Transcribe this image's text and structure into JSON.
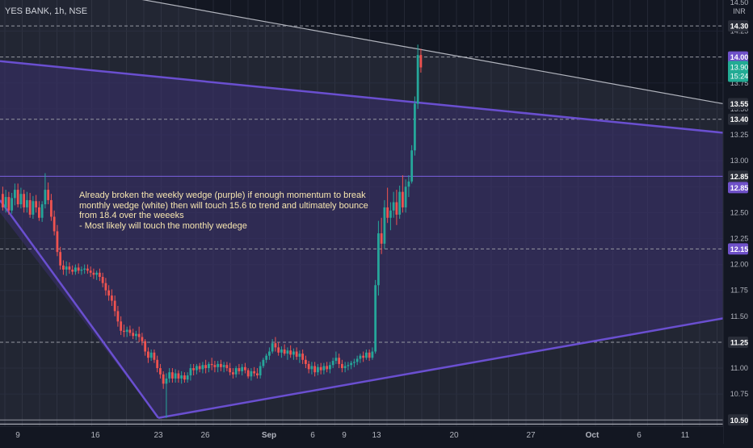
{
  "header": {
    "ticker": "YES BANK, 1h, NSE",
    "currency": "INR",
    "top_clipped": "14.50"
  },
  "annotation": "Already broken the weekly wedge (purple) if enough momentum to break monthly wedge (white) then will touch 15.6 to trend and ultimately bounce from 18.4 over the weeeks\n- Most likely will touch the monthly wedege",
  "colors": {
    "background": "#131722",
    "up": "#26a69a",
    "down": "#ef5350",
    "purple_wedge": "#6a4fd0",
    "white_wedge": "#b2b5be",
    "purple_fill": "#3b2f6e",
    "white_fill": "#5a5f70",
    "price_badge": "#22ab94"
  },
  "chart_data": {
    "type": "candlestick",
    "title": "YES BANK, 1h, NSE",
    "ylim": [
      10.44,
      14.55
    ],
    "y_ticks": [
      "10.75",
      "11.00",
      "11.25",
      "11.50",
      "11.75",
      "12.00",
      "12.25",
      "12.50",
      "12.75",
      "13.00",
      "13.25",
      "13.50",
      "13.75",
      "14.00",
      "14.25"
    ],
    "x_tick_labels": [
      "9",
      "16",
      "23",
      "26",
      "Sep",
      "6",
      "9",
      "13",
      "20",
      "27",
      "Oct",
      "6",
      "11"
    ],
    "horizontal_levels": [
      {
        "value": 14.3,
        "style": "dashed",
        "badge": "dark"
      },
      {
        "value": 14.0,
        "style": "dashed",
        "badge": "purple"
      },
      {
        "value": 13.55,
        "style": "none",
        "badge": "dark"
      },
      {
        "value": 13.4,
        "style": "dashed",
        "badge": "dark"
      },
      {
        "value": 12.85,
        "style": "solid",
        "badge": "dark"
      },
      {
        "value": 12.85,
        "style": "none",
        "badge": "purple"
      },
      {
        "value": 12.15,
        "style": "dashed",
        "badge": "purple"
      },
      {
        "value": 11.25,
        "style": "dashed",
        "badge": "dark"
      },
      {
        "value": 10.5,
        "style": "solid",
        "badge": "dark"
      }
    ],
    "last_price": {
      "value": "13.90",
      "countdown": "15:24"
    },
    "trendlines": [
      {
        "name": "monthly wedge upper",
        "color": "white",
        "from_price": 14.8,
        "to_price": 13.55
      },
      {
        "name": "monthly wedge lower",
        "color": "white",
        "from_price": 10.46,
        "to_price": 10.46
      },
      {
        "name": "weekly wedge upper",
        "color": "purple",
        "from_price": 13.96,
        "to_price": 13.27
      },
      {
        "name": "weekly wedge lower",
        "color": "purple",
        "from_price": 10.52,
        "to_price": 11.48
      }
    ],
    "candles": [
      [
        12.68,
        12.75,
        12.52,
        12.55
      ],
      [
        12.55,
        12.72,
        12.5,
        12.65
      ],
      [
        12.65,
        12.7,
        12.48,
        12.52
      ],
      [
        12.52,
        12.69,
        12.49,
        12.64
      ],
      [
        12.64,
        12.78,
        12.57,
        12.72
      ],
      [
        12.72,
        12.78,
        12.55,
        12.58
      ],
      [
        12.58,
        12.74,
        12.54,
        12.68
      ],
      [
        12.68,
        12.72,
        12.5,
        12.55
      ],
      [
        12.55,
        12.7,
        12.5,
        12.62
      ],
      [
        12.62,
        12.69,
        12.45,
        12.48
      ],
      [
        12.48,
        12.66,
        12.44,
        12.61
      ],
      [
        12.61,
        12.67,
        12.5,
        12.55
      ],
      [
        12.55,
        12.61,
        12.42,
        12.45
      ],
      [
        12.45,
        12.61,
        12.41,
        12.58
      ],
      [
        12.58,
        12.88,
        12.54,
        12.72
      ],
      [
        12.72,
        12.79,
        12.58,
        12.62
      ],
      [
        12.62,
        12.68,
        12.42,
        12.46
      ],
      [
        12.46,
        12.52,
        12.28,
        12.32
      ],
      [
        12.32,
        12.38,
        12.08,
        12.12
      ],
      [
        12.12,
        12.17,
        11.95,
        11.99
      ],
      [
        11.99,
        12.04,
        11.9,
        11.95
      ],
      [
        11.95,
        12.03,
        11.89,
        11.98
      ],
      [
        11.98,
        12.02,
        11.91,
        11.95
      ],
      [
        11.95,
        11.99,
        11.9,
        11.93
      ],
      [
        11.93,
        12.0,
        11.9,
        11.97
      ],
      [
        11.97,
        12.01,
        11.91,
        11.94
      ],
      [
        11.94,
        11.98,
        11.9,
        11.95
      ],
      [
        11.95,
        12.0,
        11.91,
        11.96
      ],
      [
        11.96,
        12.0,
        11.91,
        11.94
      ],
      [
        11.94,
        11.98,
        11.88,
        11.92
      ],
      [
        11.92,
        11.96,
        11.86,
        11.9
      ],
      [
        11.9,
        11.94,
        11.85,
        11.92
      ],
      [
        11.92,
        11.96,
        11.84,
        11.88
      ],
      [
        11.88,
        11.92,
        11.78,
        11.82
      ],
      [
        11.82,
        11.87,
        11.7,
        11.75
      ],
      [
        11.75,
        11.8,
        11.65,
        11.7
      ],
      [
        11.7,
        11.76,
        11.6,
        11.65
      ],
      [
        11.65,
        11.7,
        11.5,
        11.55
      ],
      [
        11.55,
        11.6,
        11.4,
        11.45
      ],
      [
        11.45,
        11.5,
        11.32,
        11.36
      ],
      [
        11.36,
        11.42,
        11.3,
        11.35
      ],
      [
        11.35,
        11.4,
        11.3,
        11.37
      ],
      [
        11.37,
        11.41,
        11.31,
        11.34
      ],
      [
        11.34,
        11.38,
        11.28,
        11.31
      ],
      [
        11.31,
        11.36,
        11.27,
        11.33
      ],
      [
        11.33,
        11.4,
        11.25,
        11.3
      ],
      [
        11.3,
        11.34,
        11.22,
        11.26
      ],
      [
        11.26,
        11.28,
        11.12,
        11.16
      ],
      [
        11.16,
        11.2,
        11.05,
        11.1
      ],
      [
        11.1,
        11.18,
        11.07,
        11.15
      ],
      [
        11.15,
        11.18,
        11.05,
        11.08
      ],
      [
        11.08,
        11.12,
        10.96,
        11.0
      ],
      [
        11.0,
        11.04,
        10.9,
        10.94
      ],
      [
        10.94,
        10.97,
        10.8,
        10.85
      ],
      [
        10.85,
        10.95,
        10.52,
        10.9
      ],
      [
        10.9,
        11.0,
        10.86,
        10.96
      ],
      [
        10.96,
        11.0,
        10.86,
        10.9
      ],
      [
        10.9,
        10.99,
        10.86,
        10.95
      ],
      [
        10.95,
        10.98,
        10.86,
        10.9
      ],
      [
        10.9,
        10.97,
        10.85,
        10.93
      ],
      [
        10.93,
        10.96,
        10.86,
        10.89
      ],
      [
        10.89,
        10.96,
        10.86,
        10.93
      ],
      [
        10.93,
        11.04,
        10.88,
        11.0
      ],
      [
        11.0,
        11.04,
        10.93,
        10.98
      ],
      [
        10.98,
        11.04,
        10.94,
        11.02
      ],
      [
        11.02,
        11.05,
        10.96,
        10.99
      ],
      [
        10.99,
        11.06,
        10.95,
        11.03
      ],
      [
        11.03,
        11.08,
        10.95,
        11.0
      ],
      [
        11.0,
        11.06,
        10.96,
        11.04
      ],
      [
        11.04,
        11.1,
        10.98,
        11.03
      ],
      [
        11.03,
        11.07,
        10.96,
        11.01
      ],
      [
        11.01,
        11.07,
        10.96,
        11.04
      ],
      [
        11.04,
        11.08,
        10.97,
        11.01
      ],
      [
        11.01,
        11.06,
        10.96,
        11.03
      ],
      [
        11.03,
        11.06,
        10.97,
        11.0
      ],
      [
        11.0,
        11.05,
        10.93,
        10.96
      ],
      [
        10.96,
        11.0,
        10.9,
        10.94
      ],
      [
        10.94,
        11.02,
        10.91,
        11.0
      ],
      [
        11.0,
        11.04,
        10.94,
        10.97
      ],
      [
        10.97,
        11.04,
        10.93,
        11.01
      ],
      [
        11.01,
        11.05,
        10.95,
        10.98
      ],
      [
        10.98,
        11.0,
        10.9,
        10.92
      ],
      [
        10.92,
        11.0,
        10.88,
        10.97
      ],
      [
        10.97,
        11.01,
        10.92,
        10.95
      ],
      [
        10.95,
        11.0,
        10.9,
        10.93
      ],
      [
        10.93,
        11.06,
        10.9,
        11.02
      ],
      [
        11.02,
        11.1,
        11.0,
        11.08
      ],
      [
        11.08,
        11.14,
        11.05,
        11.12
      ],
      [
        11.12,
        11.2,
        11.08,
        11.16
      ],
      [
        11.16,
        11.28,
        11.14,
        11.24
      ],
      [
        11.24,
        11.3,
        11.16,
        11.2
      ],
      [
        11.2,
        11.25,
        11.12,
        11.15
      ],
      [
        11.15,
        11.21,
        11.1,
        11.18
      ],
      [
        11.18,
        11.23,
        11.12,
        11.14
      ],
      [
        11.14,
        11.2,
        11.08,
        11.17
      ],
      [
        11.17,
        11.22,
        11.1,
        11.13
      ],
      [
        11.13,
        11.19,
        11.08,
        11.16
      ],
      [
        11.16,
        11.2,
        11.08,
        11.11
      ],
      [
        11.11,
        11.17,
        11.05,
        11.14
      ],
      [
        11.14,
        11.18,
        11.04,
        11.08
      ],
      [
        11.08,
        11.12,
        11.0,
        11.04
      ],
      [
        11.04,
        11.07,
        10.95,
        10.99
      ],
      [
        10.99,
        11.06,
        10.94,
        11.02
      ],
      [
        11.02,
        11.06,
        10.92,
        10.96
      ],
      [
        10.96,
        11.04,
        10.93,
        11.01
      ],
      [
        11.01,
        11.05,
        10.94,
        10.98
      ],
      [
        10.98,
        11.05,
        10.94,
        11.02
      ],
      [
        11.02,
        11.06,
        10.96,
        10.99
      ],
      [
        10.99,
        11.06,
        10.95,
        11.03
      ],
      [
        11.03,
        11.1,
        11.0,
        11.07
      ],
      [
        11.07,
        11.16,
        11.04,
        11.1
      ],
      [
        11.1,
        11.14,
        11.0,
        11.04
      ],
      [
        11.04,
        11.08,
        10.96,
        11.0
      ],
      [
        11.0,
        11.06,
        10.96,
        11.02
      ],
      [
        11.02,
        11.06,
        10.98,
        11.03
      ],
      [
        11.03,
        11.07,
        10.99,
        11.05
      ],
      [
        11.05,
        11.09,
        11.01,
        11.06
      ],
      [
        11.06,
        11.12,
        11.03,
        11.09
      ],
      [
        11.09,
        11.14,
        11.05,
        11.12
      ],
      [
        11.12,
        11.16,
        11.06,
        11.1
      ],
      [
        11.1,
        11.18,
        11.08,
        11.15
      ],
      [
        11.15,
        11.18,
        11.07,
        11.1
      ],
      [
        11.1,
        11.2,
        11.08,
        11.16
      ],
      [
        11.16,
        11.85,
        11.14,
        11.8
      ],
      [
        11.8,
        12.42,
        11.7,
        12.3
      ],
      [
        12.3,
        12.45,
        12.1,
        12.2
      ],
      [
        12.2,
        12.62,
        12.15,
        12.55
      ],
      [
        12.55,
        12.74,
        12.4,
        12.45
      ],
      [
        12.45,
        12.6,
        12.33,
        12.52
      ],
      [
        12.52,
        12.7,
        12.45,
        12.6
      ],
      [
        12.6,
        12.72,
        12.38,
        12.48
      ],
      [
        12.48,
        12.76,
        12.44,
        12.7
      ],
      [
        12.7,
        12.86,
        12.5,
        12.55
      ],
      [
        12.55,
        12.82,
        12.5,
        12.75
      ],
      [
        12.75,
        12.86,
        12.65,
        12.8
      ],
      [
        12.8,
        13.15,
        12.78,
        13.1
      ],
      [
        13.1,
        13.62,
        13.05,
        13.55
      ],
      [
        13.55,
        14.12,
        13.5,
        14.02
      ],
      [
        14.02,
        14.08,
        13.85,
        13.9
      ]
    ]
  }
}
